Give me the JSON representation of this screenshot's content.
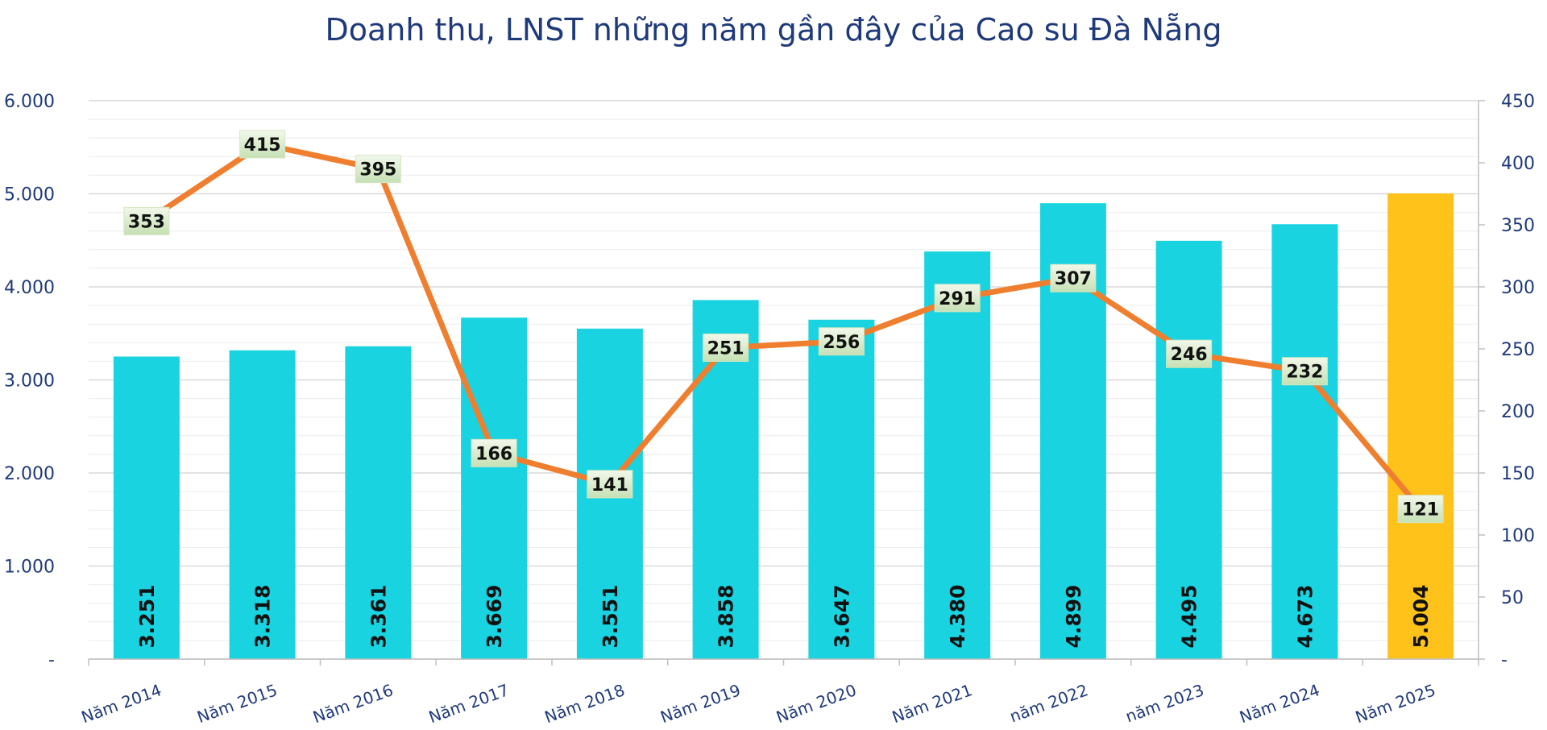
{
  "chart_data": {
    "type": "bar",
    "title": "Doanh thu, LNST những năm gần đây của Cao su Đà Nẵng",
    "categories": [
      "Năm 2014",
      "Năm 2015",
      "Năm 2016",
      "Năm 2017",
      "Năm 2018",
      "Năm 2019",
      "Năm 2020",
      "Năm 2021",
      "năm 2022",
      "năm 2023",
      "Năm 2024",
      "Năm 2025"
    ],
    "series": [
      {
        "type": "bar",
        "axis": "left",
        "values": [
          3251,
          3318,
          3361,
          3669,
          3551,
          3858,
          3647,
          4380,
          4899,
          4495,
          4673,
          5004
        ],
        "labels": [
          "3.251",
          "3.318",
          "3.361",
          "3.669",
          "3.551",
          "3.858",
          "3.647",
          "4.380",
          "4.899",
          "4.495",
          "4.673",
          "5.004"
        ],
        "color": "#1ad3e0",
        "highlight_index": 11,
        "highlight_color": "#ffc21a"
      },
      {
        "type": "line",
        "axis": "right",
        "values": [
          353,
          415,
          395,
          166,
          141,
          251,
          256,
          291,
          307,
          246,
          232,
          121
        ],
        "labels": [
          "353",
          "415",
          "395",
          "166",
          "141",
          "251",
          "256",
          "291",
          "307",
          "246",
          "232",
          "121"
        ],
        "color": "#ef7e2f"
      }
    ],
    "y_left": {
      "ylim": [
        0,
        6000
      ],
      "ticks": [
        0,
        1000,
        2000,
        3000,
        4000,
        5000,
        6000
      ],
      "tick_labels": [
        "-",
        "1.000",
        "2.000",
        "3.000",
        "4.000",
        "5.000",
        "6.000"
      ]
    },
    "y_right": {
      "ylim": [
        0,
        450
      ],
      "ticks": [
        0,
        50,
        100,
        150,
        200,
        250,
        300,
        350,
        400,
        450
      ],
      "tick_labels": [
        "-",
        "50",
        "100",
        "150",
        "200",
        "250",
        "300",
        "350",
        "400",
        "450"
      ]
    },
    "grid": true,
    "legend": "none",
    "colors": {
      "title": "#1f3a7a",
      "axis_text": "#1f3a7a",
      "grid": "#d9d9d9",
      "label_box_top": "#f2f8ea",
      "label_box_bottom": "#c6e0b4"
    }
  }
}
